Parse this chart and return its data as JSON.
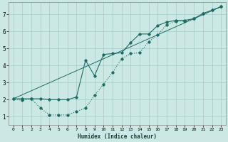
{
  "xlabel": "Humidex (Indice chaleur)",
  "bg_color": "#cce8e4",
  "grid_color": "#aacfcb",
  "line_color": "#1e6b65",
  "xlim": [
    -0.5,
    23.5
  ],
  "ylim": [
    0.5,
    7.7
  ],
  "x_ticks": [
    0,
    1,
    2,
    3,
    4,
    5,
    6,
    7,
    8,
    9,
    10,
    11,
    12,
    13,
    14,
    15,
    16,
    17,
    18,
    19,
    20,
    21,
    22,
    23
  ],
  "y_ticks": [
    1,
    2,
    3,
    4,
    5,
    6,
    7
  ],
  "line1_x": [
    0,
    1,
    2,
    3,
    4,
    5,
    6,
    7,
    8,
    9,
    10,
    11,
    12,
    13,
    14,
    15,
    16,
    17,
    18,
    19,
    20,
    21,
    22,
    23
  ],
  "line1_y": [
    2.05,
    1.95,
    2.05,
    1.5,
    1.1,
    1.1,
    1.1,
    1.3,
    1.5,
    2.25,
    2.9,
    3.6,
    4.4,
    4.7,
    4.75,
    5.4,
    5.8,
    6.4,
    6.6,
    6.6,
    6.75,
    7.05,
    7.25,
    7.45
  ],
  "line2_x": [
    0,
    1,
    2,
    3,
    4,
    5,
    6,
    7,
    8,
    9,
    10,
    11,
    12,
    13,
    14,
    15,
    16,
    17,
    18,
    19,
    20,
    21,
    22,
    23
  ],
  "line2_y": [
    2.05,
    2.05,
    2.05,
    2.05,
    2.0,
    2.0,
    2.0,
    2.15,
    4.3,
    3.4,
    4.65,
    4.7,
    4.75,
    5.35,
    5.85,
    5.85,
    6.35,
    6.55,
    6.65,
    6.65,
    6.75,
    7.05,
    7.25,
    7.45
  ],
  "line3_x": [
    0,
    23
  ],
  "line3_y": [
    2.05,
    7.45
  ]
}
